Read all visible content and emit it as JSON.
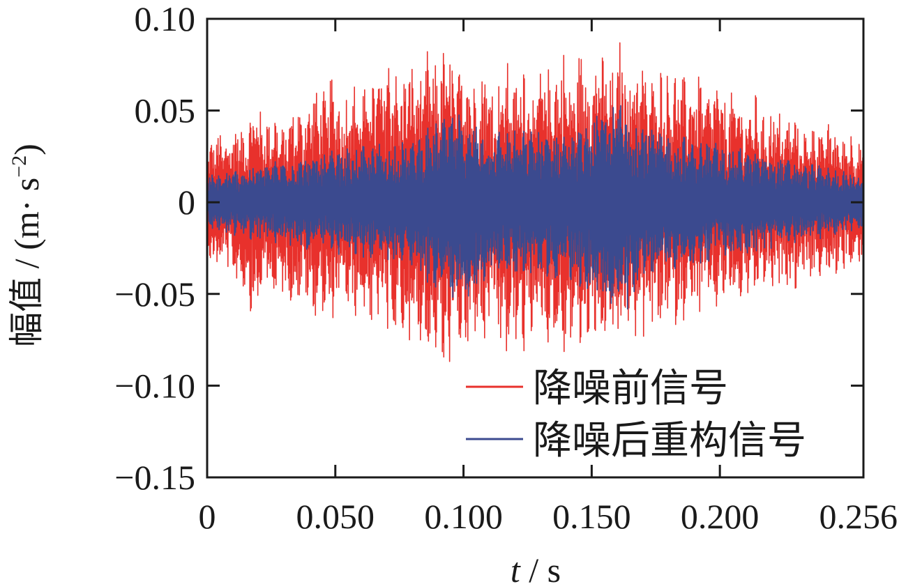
{
  "chart_data": {
    "type": "line",
    "xlabel_var": "t",
    "xlabel_sep": " / ",
    "xlabel_unit": "s",
    "ylabel_main": "幅值 / (m",
    "ylabel_dot": "·",
    "ylabel_unit_base": " s",
    "ylabel_exp": "−2",
    "ylabel_close": ")",
    "xlim": [
      0,
      0.256
    ],
    "ylim": [
      -0.15,
      0.1
    ],
    "x_ticks": [
      0,
      0.05,
      0.1,
      0.15,
      0.2,
      0.256
    ],
    "x_tick_labels": [
      "0",
      "0.050",
      "0.100",
      "0.150",
      "0.200",
      "0.256"
    ],
    "y_ticks": [
      0.1,
      0.05,
      0,
      -0.05,
      -0.1,
      -0.15
    ],
    "y_tick_labels": [
      "0.10",
      "0.05",
      "0",
      "−0.05",
      "−0.10",
      "−0.15"
    ],
    "grid": false,
    "legend_position": "lower-right",
    "series": [
      {
        "name": "降噪前信号",
        "color": "#e8312c",
        "approx": true,
        "x": [
          0,
          0.0038,
          0.0075,
          0.0113,
          0.015,
          0.0188,
          0.0225,
          0.0263,
          0.03,
          0.0338,
          0.0375,
          0.0413,
          0.045,
          0.0488,
          0.0525,
          0.0563,
          0.06,
          0.0638,
          0.0675,
          0.0713,
          0.075,
          0.0788,
          0.0825,
          0.0863,
          0.09,
          0.0938,
          0.0975,
          0.1013,
          0.105,
          0.1088,
          0.1125,
          0.1163,
          0.12,
          0.1238,
          0.1275,
          0.1313,
          0.135,
          0.1388,
          0.1425,
          0.1463,
          0.15,
          0.1538,
          0.1575,
          0.1613,
          0.165,
          0.1688,
          0.1725,
          0.1763,
          0.18,
          0.1838,
          0.1875,
          0.1913,
          0.195,
          0.1988,
          0.2025,
          0.2063,
          0.21,
          0.2138,
          0.2175,
          0.2213,
          0.225,
          0.2288,
          0.2325,
          0.2363,
          0.24,
          0.2438,
          0.2475,
          0.2513,
          0.256
        ],
        "upper": [
          0.03,
          0.04,
          0.035,
          0.045,
          0.04,
          0.06,
          0.045,
          0.05,
          0.04,
          0.055,
          0.05,
          0.065,
          0.06,
          0.07,
          0.055,
          0.07,
          0.06,
          0.075,
          0.07,
          0.085,
          0.065,
          0.08,
          0.07,
          0.085,
          0.075,
          0.09,
          0.07,
          0.085,
          0.065,
          0.08,
          0.06,
          0.08,
          0.065,
          0.085,
          0.06,
          0.08,
          0.07,
          0.085,
          0.065,
          0.09,
          0.075,
          0.09,
          0.07,
          0.09,
          0.075,
          0.085,
          0.065,
          0.08,
          0.07,
          0.075,
          0.065,
          0.075,
          0.06,
          0.07,
          0.055,
          0.065,
          0.05,
          0.06,
          0.045,
          0.055,
          0.045,
          0.05,
          0.04,
          0.045,
          0.04,
          0.045,
          0.035,
          0.04,
          0.03
        ],
        "lower": [
          -0.03,
          -0.04,
          -0.035,
          -0.045,
          -0.05,
          -0.07,
          -0.045,
          -0.055,
          -0.05,
          -0.06,
          -0.05,
          -0.065,
          -0.06,
          -0.07,
          -0.055,
          -0.065,
          -0.06,
          -0.07,
          -0.065,
          -0.08,
          -0.07,
          -0.085,
          -0.075,
          -0.09,
          -0.08,
          -0.105,
          -0.075,
          -0.09,
          -0.07,
          -0.085,
          -0.07,
          -0.09,
          -0.075,
          -0.085,
          -0.07,
          -0.08,
          -0.075,
          -0.09,
          -0.075,
          -0.085,
          -0.07,
          -0.09,
          -0.075,
          -0.085,
          -0.07,
          -0.08,
          -0.065,
          -0.075,
          -0.06,
          -0.07,
          -0.06,
          -0.065,
          -0.055,
          -0.06,
          -0.05,
          -0.06,
          -0.05,
          -0.055,
          -0.045,
          -0.05,
          -0.045,
          -0.05,
          -0.04,
          -0.045,
          -0.04,
          -0.045,
          -0.035,
          -0.04,
          -0.03
        ]
      },
      {
        "name": "降噪后重构信号",
        "color": "#3b4a8f",
        "approx": true,
        "x": [
          0,
          0.016,
          0.032,
          0.048,
          0.064,
          0.08,
          0.096,
          0.112,
          0.128,
          0.144,
          0.16,
          0.176,
          0.192,
          0.208,
          0.224,
          0.24,
          0.256
        ],
        "upper": [
          0.015,
          0.02,
          0.025,
          0.028,
          0.032,
          0.035,
          0.05,
          0.04,
          0.04,
          0.04,
          0.058,
          0.04,
          0.035,
          0.03,
          0.025,
          0.02,
          0.015
        ],
        "lower": [
          -0.015,
          -0.02,
          -0.025,
          -0.028,
          -0.032,
          -0.035,
          -0.06,
          -0.04,
          -0.04,
          -0.045,
          -0.065,
          -0.04,
          -0.035,
          -0.03,
          -0.025,
          -0.02,
          -0.015
        ]
      }
    ]
  }
}
